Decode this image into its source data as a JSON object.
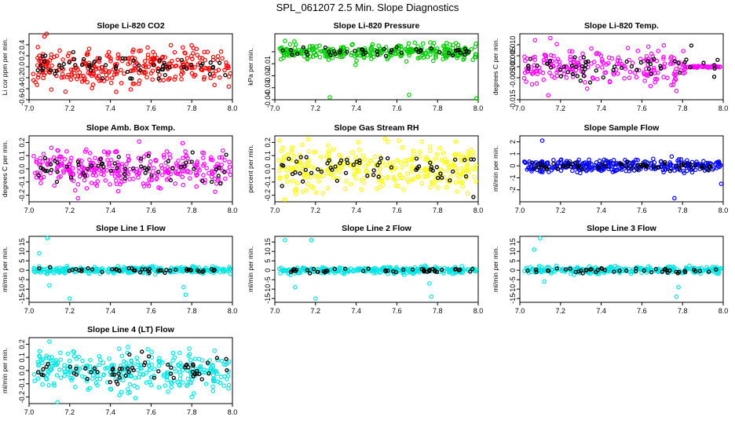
{
  "figure_title": "SPL_061207  2.5 Min. Slope Diagnostics",
  "chart_data": [
    {
      "type": "scatter",
      "title": "Slope Li-820 CO2",
      "ylabel": "Li cor ppm per min.",
      "xlim": [
        7.0,
        8.0
      ],
      "ylim": [
        -0.6,
        0.6
      ],
      "xticks": [
        7.0,
        7.2,
        7.4,
        7.6,
        7.8,
        8.0
      ],
      "xtick_labels": [
        "7.0",
        "7.2",
        "7.4",
        "7.6",
        "7.8",
        "8.0"
      ],
      "yticks": [
        -0.6,
        -0.4,
        -0.2,
        0.0,
        0.2,
        0.4
      ],
      "ytick_labels": [
        "-0.6",
        "-0.4",
        "-0.2",
        "0.0",
        "0.2",
        "0.4"
      ],
      "color": "#ff0000",
      "secondary_color": "#000000",
      "seed": 11,
      "spread": 0.18,
      "n_primary": 300,
      "n_secondary": 60,
      "spikes": []
    },
    {
      "type": "scatter",
      "title": "Slope Li-820 Pressure",
      "ylabel": "kPa per min.",
      "xlim": [
        7.0,
        8.0
      ],
      "ylim": [
        -0.04,
        0.015
      ],
      "xticks": [
        7.0,
        7.2,
        7.4,
        7.6,
        7.8,
        8.0
      ],
      "xtick_labels": [
        "7.0",
        "7.2",
        "7.4",
        "7.6",
        "7.8",
        "8.0"
      ],
      "yticks": [
        -0.04,
        -0.03,
        -0.02,
        -0.01,
        0.0
      ],
      "ytick_labels": [
        "-0.04",
        "-0.03",
        "-0.02",
        "-0.01",
        ""
      ],
      "color": "#00cc00",
      "secondary_color": "#000000",
      "seed": 23,
      "spread": 0.003,
      "n_primary": 320,
      "n_secondary": 45,
      "spikes": [
        {
          "x": 7.27,
          "y": -0.038
        },
        {
          "x": 7.66,
          "y": -0.036
        },
        {
          "x": 7.99,
          "y": -0.039
        },
        {
          "x": 7.05,
          "y": 0.009
        },
        {
          "x": 7.86,
          "y": 0.006
        }
      ]
    },
    {
      "type": "scatter",
      "title": "Slope Li-820 Temp.",
      "ylabel": "degrees C per min.",
      "xlim": [
        7.0,
        8.0
      ],
      "ylim": [
        -0.015,
        0.015
      ],
      "xticks": [
        7.0,
        7.2,
        7.4,
        7.6,
        7.8,
        8.0
      ],
      "xtick_labels": [
        "7.0",
        "7.2",
        "7.4",
        "7.6",
        "7.8",
        "8.0"
      ],
      "yticks": [
        -0.015,
        -0.005,
        0.0,
        0.005,
        0.01
      ],
      "ytick_labels": [
        "-0.015",
        "-0.005",
        "0.000",
        "0.005",
        "0.010"
      ],
      "color": "#ff00ff",
      "secondary_color": "#000000",
      "seed": 37,
      "spread": 0.004,
      "n_primary": 260,
      "n_secondary": 55,
      "spikes": [
        {
          "x": 7.14,
          "y": -0.013
        },
        {
          "x": 7.77,
          "y": -0.011
        },
        {
          "x": 7.15,
          "y": 0.013
        }
      ]
    },
    {
      "type": "scatter",
      "title": "Slope Amb. Box Temp.",
      "ylabel": "degrees C per min.",
      "xlim": [
        7.0,
        8.0
      ],
      "ylim": [
        -0.25,
        0.25
      ],
      "xticks": [
        7.0,
        7.2,
        7.4,
        7.6,
        7.8,
        8.0
      ],
      "xtick_labels": [
        "7.0",
        "7.2",
        "7.4",
        "7.6",
        "7.8",
        "8.0"
      ],
      "yticks": [
        -0.2,
        -0.1,
        0.0,
        0.1,
        0.2
      ],
      "ytick_labels": [
        "-0.2",
        "-0.1",
        "0.0",
        "0.1",
        "0.2"
      ],
      "color": "#ff00ff",
      "secondary_color": "#000000",
      "seed": 51,
      "spread": 0.07,
      "n_primary": 310,
      "n_secondary": 60,
      "spikes": []
    },
    {
      "type": "scatter",
      "title": "Slope Gas Stream RH",
      "ylabel": "percent per min.",
      "xlim": [
        7.0,
        8.0
      ],
      "ylim": [
        -0.25,
        0.25
      ],
      "xticks": [
        7.0,
        7.2,
        7.4,
        7.6,
        7.8,
        8.0
      ],
      "xtick_labels": [
        "7.0",
        "7.2",
        "7.4",
        "7.6",
        "7.8",
        "8.0"
      ],
      "yticks": [
        -0.2,
        -0.1,
        0.0,
        0.1,
        0.2
      ],
      "ytick_labels": [
        "-0.2",
        "-0.1",
        "0.0",
        "0.1",
        "0.2"
      ],
      "color": "#ffff00",
      "secondary_color": "#000000",
      "seed": 67,
      "spread": 0.08,
      "n_primary": 320,
      "n_secondary": 60,
      "spikes": []
    },
    {
      "type": "scatter",
      "title": "Slope Sample Flow",
      "ylabel": "ml/min per min.",
      "xlim": [
        7.0,
        8.0
      ],
      "ylim": [
        -3,
        2.5
      ],
      "xticks": [
        7.0,
        7.2,
        7.4,
        7.6,
        7.8,
        8.0
      ],
      "xtick_labels": [
        "7.0",
        "7.2",
        "7.4",
        "7.6",
        "7.8",
        "8.0"
      ],
      "yticks": [
        -2,
        -1,
        0,
        1,
        2
      ],
      "ytick_labels": [
        "-2",
        "-1",
        "0",
        "1",
        "2"
      ],
      "color": "#0000ff",
      "secondary_color": "#000000",
      "seed": 79,
      "spread": 0.25,
      "n_primary": 320,
      "n_secondary": 55,
      "spikes": [
        {
          "x": 7.11,
          "y": 2.1
        },
        {
          "x": 7.76,
          "y": -2.7
        },
        {
          "x": 7.99,
          "y": -1.5
        }
      ]
    },
    {
      "type": "scatter",
      "title": "Slope Line 1 Flow",
      "ylabel": "ml/min per min.",
      "xlim": [
        7.0,
        8.0
      ],
      "ylim": [
        -17,
        18
      ],
      "xticks": [
        7.0,
        7.2,
        7.4,
        7.6,
        7.8,
        8.0
      ],
      "xtick_labels": [
        "7.0",
        "7.2",
        "7.4",
        "7.6",
        "7.8",
        "8.0"
      ],
      "yticks": [
        -15,
        -10,
        -5,
        0,
        5,
        10,
        15
      ],
      "ytick_labels": [
        "-15",
        "-10",
        "-5",
        "0",
        "5",
        "10",
        "15"
      ],
      "color": "#00e5e5",
      "secondary_color": "#000000",
      "seed": 91,
      "spread": 0.9,
      "n_primary": 300,
      "n_secondary": 45,
      "spikes": [
        {
          "x": 7.09,
          "y": 17
        },
        {
          "x": 7.05,
          "y": 9
        },
        {
          "x": 7.2,
          "y": -15
        },
        {
          "x": 7.77,
          "y": -13
        },
        {
          "x": 7.1,
          "y": -8
        },
        {
          "x": 7.76,
          "y": -9
        }
      ]
    },
    {
      "type": "scatter",
      "title": "Slope Line 2 Flow",
      "ylabel": "ml/min per min.",
      "xlim": [
        7.0,
        8.0
      ],
      "ylim": [
        -17,
        18
      ],
      "xticks": [
        7.0,
        7.2,
        7.4,
        7.6,
        7.8,
        8.0
      ],
      "xtick_labels": [
        "7.0",
        "7.2",
        "7.4",
        "7.6",
        "7.8",
        "8.0"
      ],
      "yticks": [
        -15,
        -10,
        -5,
        0,
        5,
        10,
        15
      ],
      "ytick_labels": [
        "-15",
        "-10",
        "-5",
        "0",
        "5",
        "10",
        "15"
      ],
      "color": "#00e5e5",
      "secondary_color": "#000000",
      "seed": 103,
      "spread": 0.9,
      "n_primary": 300,
      "n_secondary": 45,
      "spikes": [
        {
          "x": 7.05,
          "y": 16
        },
        {
          "x": 7.18,
          "y": 16
        },
        {
          "x": 7.2,
          "y": -15
        },
        {
          "x": 7.77,
          "y": -14
        },
        {
          "x": 7.1,
          "y": -9
        },
        {
          "x": 7.76,
          "y": -7
        }
      ]
    },
    {
      "type": "scatter",
      "title": "Slope Line 3 Flow",
      "ylabel": "ml/min per min.",
      "xlim": [
        7.0,
        8.0
      ],
      "ylim": [
        -17,
        18
      ],
      "xticks": [
        7.0,
        7.2,
        7.4,
        7.6,
        7.8,
        8.0
      ],
      "xtick_labels": [
        "7.0",
        "7.2",
        "7.4",
        "7.6",
        "7.8",
        "8.0"
      ],
      "yticks": [
        -15,
        -10,
        -5,
        0,
        5,
        10,
        15
      ],
      "ytick_labels": [
        "-15",
        "-10",
        "-5",
        "0",
        "5",
        "10",
        "15"
      ],
      "color": "#00e5e5",
      "secondary_color": "#000000",
      "seed": 117,
      "spread": 0.9,
      "n_primary": 300,
      "n_secondary": 45,
      "spikes": [
        {
          "x": 7.1,
          "y": 17
        },
        {
          "x": 7.07,
          "y": 11
        },
        {
          "x": 7.77,
          "y": -14
        },
        {
          "x": 7.78,
          "y": -9
        },
        {
          "x": 7.12,
          "y": -6
        }
      ]
    },
    {
      "type": "scatter",
      "title": "Slope Line 4 (LT) Flow",
      "ylabel": "ml/min per min.",
      "xlim": [
        7.0,
        8.0
      ],
      "ylim": [
        -0.25,
        0.25
      ],
      "xticks": [
        7.0,
        7.2,
        7.4,
        7.6,
        7.8,
        8.0
      ],
      "xtick_labels": [
        "7.0",
        "7.2",
        "7.4",
        "7.6",
        "7.8",
        "8.0"
      ],
      "yticks": [
        -0.2,
        -0.1,
        0.0,
        0.1,
        0.2
      ],
      "ytick_labels": [
        "-0.2",
        "-0.1",
        "0.0",
        "0.1",
        "0.2"
      ],
      "color": "#00e5e5",
      "secondary_color": "#000000",
      "seed": 131,
      "spread": 0.07,
      "n_primary": 310,
      "n_secondary": 60,
      "spikes": [
        {
          "x": 7.1,
          "y": 0.22
        },
        {
          "x": 7.14,
          "y": -0.24
        },
        {
          "x": 7.8,
          "y": -0.2
        }
      ]
    }
  ]
}
